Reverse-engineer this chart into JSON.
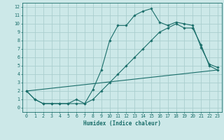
{
  "xlabel": "Humidex (Indice chaleur)",
  "bg_color": "#cce8e8",
  "grid_color": "#aacece",
  "line_color": "#1a6e6a",
  "xlim": [
    -0.5,
    23.5
  ],
  "ylim": [
    -0.5,
    12.5
  ],
  "xticks": [
    0,
    1,
    2,
    3,
    4,
    5,
    6,
    7,
    8,
    9,
    10,
    11,
    12,
    13,
    14,
    15,
    16,
    17,
    18,
    19,
    20,
    21,
    22,
    23
  ],
  "yticks": [
    0,
    1,
    2,
    3,
    4,
    5,
    6,
    7,
    8,
    9,
    10,
    11,
    12
  ],
  "series1_x": [
    0,
    1,
    2,
    3,
    4,
    5,
    6,
    7,
    8,
    9,
    10,
    11,
    12,
    13,
    14,
    15,
    16,
    17,
    18,
    19,
    20,
    21,
    22,
    23
  ],
  "series1_y": [
    2,
    1,
    0.5,
    0.5,
    0.5,
    0.5,
    0.5,
    0.5,
    1,
    2,
    3,
    4,
    5,
    6,
    7,
    8,
    9,
    9.5,
    10,
    9.5,
    9.5,
    7.5,
    5,
    4.5
  ],
  "series2_x": [
    0,
    1,
    2,
    3,
    4,
    5,
    6,
    7,
    8,
    9,
    10,
    11,
    12,
    13,
    14,
    15,
    16,
    17,
    18,
    19,
    20,
    21,
    22,
    23
  ],
  "series2_y": [
    2,
    1,
    0.5,
    0.5,
    0.5,
    0.5,
    1,
    0.5,
    2.2,
    4.5,
    8,
    9.8,
    9.8,
    11,
    11.5,
    11.8,
    10.2,
    9.8,
    10.2,
    10,
    9.8,
    7.2,
    5.2,
    4.8
  ],
  "series3_x": [
    0,
    23
  ],
  "series3_y": [
    2,
    4.5
  ],
  "xlabel_fontsize": 5.5,
  "tick_fontsize": 4.8,
  "lw": 0.8,
  "ms": 1.8
}
